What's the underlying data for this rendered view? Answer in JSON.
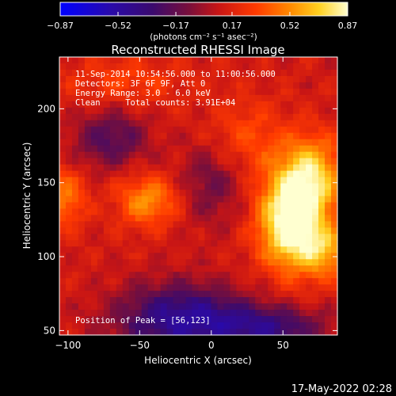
{
  "chart_data": {
    "type": "heatmap",
    "title": "Reconstructed RHESSI Image",
    "xlabel": "Heliocentric X (arcsec)",
    "ylabel": "Heliocentric Y (arcsec)",
    "xlim": [
      -106,
      88
    ],
    "ylim": [
      47,
      235
    ],
    "x_ticks": [
      -100,
      -50,
      0,
      50
    ],
    "y_ticks": [
      50,
      100,
      150,
      200
    ],
    "x_tick_labels": [
      "−100",
      "−50",
      "0",
      "50"
    ],
    "y_tick_labels": [
      "50",
      "100",
      "150",
      "200"
    ],
    "colorbar": {
      "range": [
        -0.87,
        0.87
      ],
      "ticks": [
        -0.87,
        -0.52,
        -0.17,
        0.17,
        0.52,
        0.87
      ],
      "tick_labels": [
        "−0.87",
        "−0.52",
        "−0.17",
        "0.17",
        "0.52",
        "0.87"
      ],
      "unit_label": "(photons cm⁻² s⁻¹ asec⁻²)"
    },
    "annotations": [
      "11-Sep-2014 10:54:56.000 to 11:00:56.000",
      "Detectors: 3F 6F 9F, Att 0",
      "Energy Range: 3.0 - 6.0 keV",
      "Clean     Total counts: 3.91E+04"
    ],
    "peak_label": "Position of Peak = [56,123]",
    "sources": [
      {
        "x": 56,
        "y": 123,
        "amp": 0.87,
        "sx": 16,
        "sy": 22
      },
      {
        "x": 70,
        "y": 155,
        "amp": 0.55,
        "sx": 16,
        "sy": 18
      },
      {
        "x": 80,
        "y": 103,
        "amp": 0.4,
        "sx": 12,
        "sy": 12
      },
      {
        "x": -44,
        "y": 138,
        "amp": 0.42,
        "sx": 15,
        "sy": 12
      },
      {
        "x": -102,
        "y": 140,
        "amp": 0.35,
        "sx": 10,
        "sy": 14
      },
      {
        "x": 25,
        "y": 180,
        "amp": 0.22,
        "sx": 20,
        "sy": 18
      },
      {
        "x": -60,
        "y": 218,
        "amp": 0.18,
        "sx": 30,
        "sy": 12
      }
    ],
    "depressions": [
      {
        "x": -20,
        "y": 58,
        "amp": 0.6,
        "sx": 32,
        "sy": 16
      },
      {
        "x": 40,
        "y": 52,
        "amp": 0.45,
        "sx": 28,
        "sy": 10
      },
      {
        "x": -70,
        "y": 180,
        "amp": 0.35,
        "sx": 18,
        "sy": 14
      },
      {
        "x": 0,
        "y": 150,
        "amp": 0.25,
        "sx": 16,
        "sy": 20
      }
    ]
  },
  "footer_timestamp": "17-May-2022 02:28"
}
